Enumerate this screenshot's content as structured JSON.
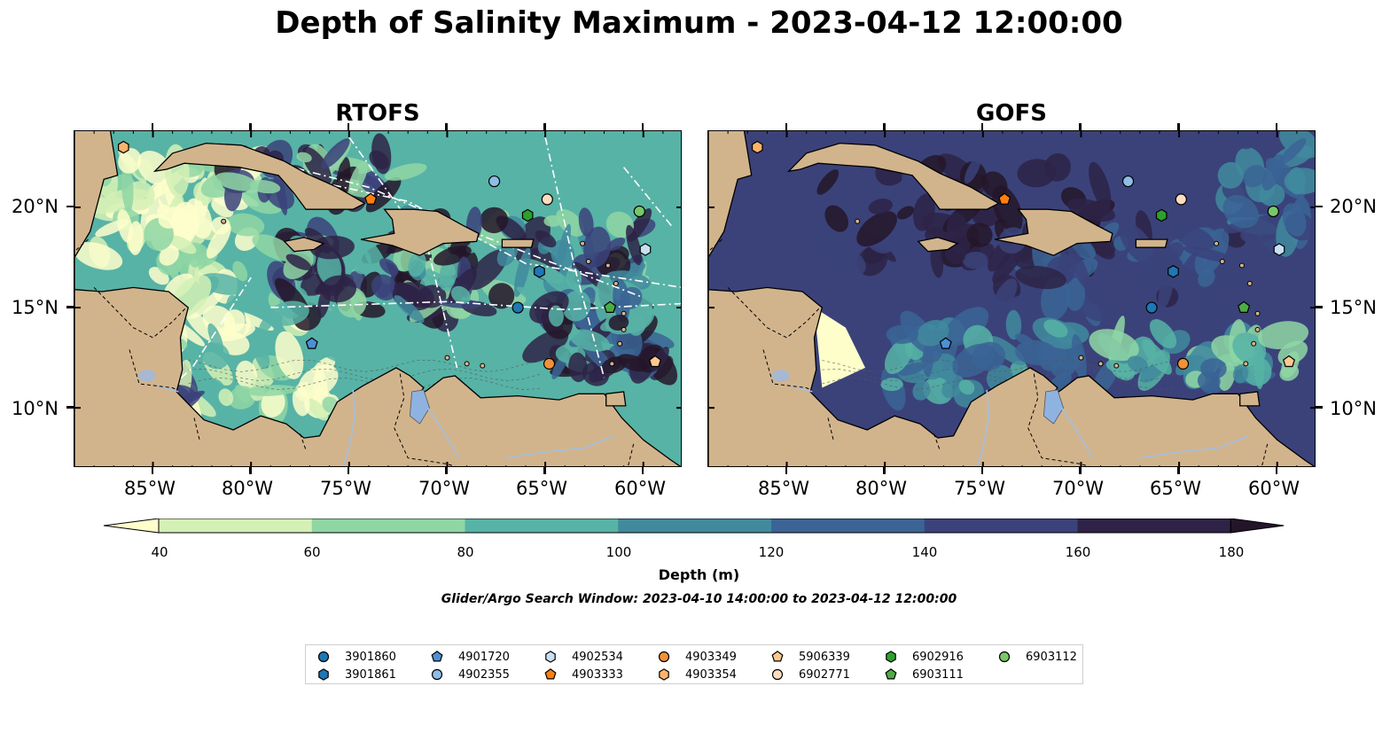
{
  "title": "Depth of Salinity Maximum - 2023-04-12 12:00:00",
  "panels": [
    {
      "name": "RTOFS"
    },
    {
      "name": "GOFS"
    }
  ],
  "map_axes": {
    "lon_ticks": [
      "85°W",
      "80°W",
      "75°W",
      "70°W",
      "65°W",
      "60°W"
    ],
    "lat_ticks": [
      "20°N",
      "15°N",
      "10°N"
    ],
    "lon_range": [
      -89,
      -58
    ],
    "lat_range": [
      7,
      23.8
    ]
  },
  "colorbar": {
    "label": "Depth (m)",
    "ticks": [
      "40",
      "60",
      "80",
      "100",
      "120",
      "140",
      "160",
      "180"
    ],
    "extend": "both",
    "colors": [
      "#fefecb",
      "#d4f0b5",
      "#8fd6a5",
      "#57b3a6",
      "#418a9e",
      "#3b6495",
      "#3b427a",
      "#2e2347",
      "#241629"
    ]
  },
  "colors": {
    "land": "#d2b48c",
    "lake": "#8fb3e0",
    "river": "#a3bfe0"
  },
  "search_window": "Glider/Argo Search Window: 2023-04-10 14:00:00 to 2023-04-12 12:00:00",
  "legend": [
    {
      "id": "3901860",
      "marker": "circle",
      "color": "#1f77b4"
    },
    {
      "id": "3901861",
      "marker": "hexagon",
      "color": "#1f77b4"
    },
    {
      "id": "4901720",
      "marker": "pentagon",
      "color": "#4e8fd6"
    },
    {
      "id": "4902355",
      "marker": "circle",
      "color": "#8fbde6"
    },
    {
      "id": "4902534",
      "marker": "hexagon",
      "color": "#c6e0f4"
    },
    {
      "id": "4903333",
      "marker": "pentagon",
      "color": "#ff7f0e"
    },
    {
      "id": "4903349",
      "marker": "circle",
      "color": "#f39137"
    },
    {
      "id": "4903354",
      "marker": "hexagon",
      "color": "#fdb36b"
    },
    {
      "id": "5906339",
      "marker": "pentagon",
      "color": "#fdc88f"
    },
    {
      "id": "6902771",
      "marker": "circle",
      "color": "#fddcbf"
    },
    {
      "id": "6902916",
      "marker": "hexagon",
      "color": "#2ca02c"
    },
    {
      "id": "6903111",
      "marker": "pentagon",
      "color": "#4dad45"
    },
    {
      "id": "6903112",
      "marker": "circle",
      "color": "#78c86a"
    }
  ],
  "floats": [
    {
      "id": "4903354",
      "lon": -86.5,
      "lat": 23.0
    },
    {
      "id": "4903333",
      "lon": -73.9,
      "lat": 20.4
    },
    {
      "id": "4902355",
      "lon": -67.6,
      "lat": 21.3
    },
    {
      "id": "6902771",
      "lon": -64.9,
      "lat": 20.4
    },
    {
      "id": "6902916",
      "lon": -65.9,
      "lat": 19.6
    },
    {
      "id": "6903112",
      "lon": -60.2,
      "lat": 19.8
    },
    {
      "id": "4902534",
      "lon": -59.9,
      "lat": 17.9
    },
    {
      "id": "3901861",
      "lon": -65.3,
      "lat": 16.8
    },
    {
      "id": "3901860",
      "lon": -66.4,
      "lat": 15.0
    },
    {
      "id": "6903111",
      "lon": -61.7,
      "lat": 15.0
    },
    {
      "id": "4901720",
      "lon": -76.9,
      "lat": 13.2
    },
    {
      "id": "4903349",
      "lon": -64.8,
      "lat": 12.2
    },
    {
      "id": "5906339",
      "lon": -59.4,
      "lat": 12.3
    }
  ]
}
